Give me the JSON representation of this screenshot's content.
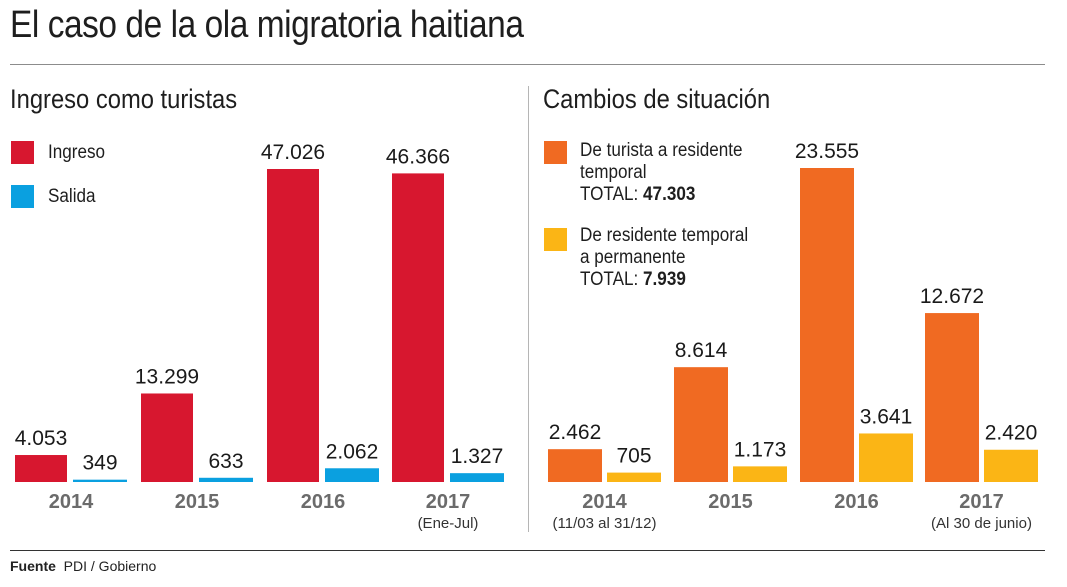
{
  "title": "El caso de la ola migratoria haitiana",
  "source": {
    "label": "Fuente",
    "text": "PDI / Gobierno"
  },
  "colors": {
    "ingreso": "#d7172f",
    "salida": "#0aa0e0",
    "turista_residente": "#f06a22",
    "residente_permanente": "#fbb515",
    "year_label": "#6b6b6b"
  },
  "chart_data": [
    {
      "type": "bar",
      "title": "Ingreso como turistas",
      "categories": [
        "2014",
        "2015",
        "2016",
        "2017"
      ],
      "category_notes": [
        "",
        "",
        "",
        "(Ene-Jul)"
      ],
      "series": [
        {
          "name": "Ingreso",
          "values": [
            4053,
            13299,
            47026,
            46366
          ],
          "labels": [
            "4.053",
            "13.299",
            "47.026",
            "46.366"
          ]
        },
        {
          "name": "Salida",
          "values": [
            349,
            633,
            2062,
            1327
          ],
          "labels": [
            "349",
            "633",
            "2.062",
            "1.327"
          ]
        }
      ],
      "legend": "top-left",
      "grid": false,
      "xlabel": "",
      "ylabel": "",
      "ylim": [
        0,
        47026
      ]
    },
    {
      "type": "bar",
      "title": "Cambios de situación",
      "categories": [
        "2014",
        "2015",
        "2016",
        "2017"
      ],
      "category_notes": [
        "(11/03 al 31/12)",
        "",
        "",
        "(Al 30 de junio)"
      ],
      "series": [
        {
          "name": "De turista a residente temporal",
          "legend_lines": [
            "De turista a residente",
            "temporal"
          ],
          "total_label": "TOTAL:",
          "total": "47.303",
          "values": [
            2462,
            8614,
            23555,
            12672
          ],
          "labels": [
            "2.462",
            "8.614",
            "23.555",
            "12.672"
          ]
        },
        {
          "name": "De residente temporal a permanente",
          "legend_lines": [
            "De residente temporal",
            "a permanente"
          ],
          "total_label": "TOTAL:",
          "total": "7.939",
          "values": [
            705,
            1173,
            3641,
            2420
          ],
          "labels": [
            "705",
            "1.173",
            "3.641",
            "2.420"
          ]
        }
      ],
      "legend": "top-left",
      "grid": false,
      "xlabel": "",
      "ylabel": "",
      "ylim": [
        0,
        23555
      ]
    }
  ]
}
